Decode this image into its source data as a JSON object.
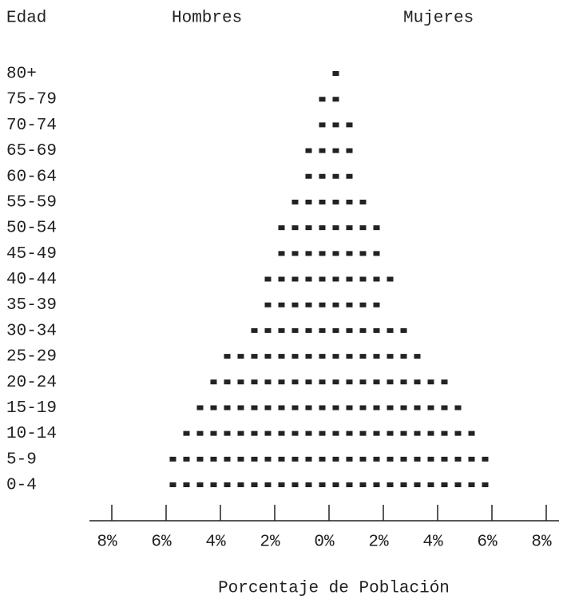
{
  "chart_data": {
    "type": "pyramid",
    "ylabel": "Edad",
    "xlabel": "Porcentaje de Población",
    "categories": [
      "80+",
      "75-79",
      "70-74",
      "65-69",
      "60-64",
      "55-59",
      "50-54",
      "45-49",
      "40-44",
      "35-39",
      "30-34",
      "25-29",
      "20-24",
      "15-19",
      "10-14",
      "5-9",
      "0-4"
    ],
    "series": [
      {
        "name": "Hombres",
        "color": "#222222",
        "values": [
          0,
          0.5,
          0.5,
          1,
          1,
          1.5,
          2,
          2,
          2.5,
          2.5,
          3,
          4,
          4.5,
          5,
          5.5,
          6,
          6
        ]
      },
      {
        "name": "Mujeres",
        "color": "#222222",
        "values": [
          0.5,
          0.5,
          1,
          1,
          1,
          1.5,
          2,
          2,
          2.5,
          2,
          3,
          3.5,
          4.5,
          5,
          5.5,
          6,
          6
        ]
      }
    ],
    "xlim": [
      -8,
      8
    ],
    "xticks": [
      {
        "value": -8,
        "label": "8%"
      },
      {
        "value": -6,
        "label": "6%"
      },
      {
        "value": -4,
        "label": "4%"
      },
      {
        "value": -2,
        "label": "2%"
      },
      {
        "value": 0,
        "label": "0%"
      },
      {
        "value": 2,
        "label": "2%"
      },
      {
        "value": 4,
        "label": "4%"
      },
      {
        "value": 6,
        "label": "6%"
      },
      {
        "value": 8,
        "label": "8%"
      }
    ]
  }
}
